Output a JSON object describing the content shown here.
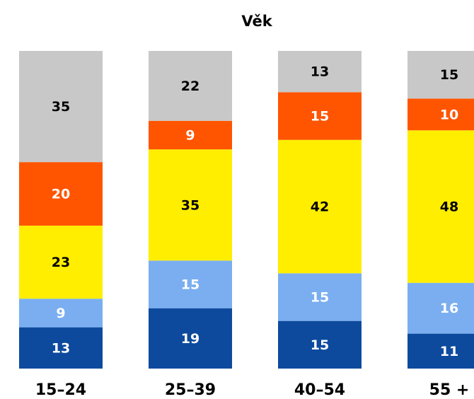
{
  "chart_data": {
    "type": "stacked_bar",
    "title": "Věk",
    "categories": [
      "15–24",
      "25–39",
      "40–54",
      "55 +"
    ],
    "series": [
      {
        "color": "#0d4a9e",
        "label_color": "#ffffff",
        "values": [
          13,
          19,
          15,
          11
        ]
      },
      {
        "color": "#7aaef0",
        "label_color": "#ffffff",
        "values": [
          9,
          15,
          15,
          16
        ]
      },
      {
        "color": "#ffee00",
        "label_color": "#000000",
        "values": [
          23,
          35,
          42,
          48
        ]
      },
      {
        "color": "#ff5500",
        "label_color": "#ffffff",
        "values": [
          20,
          9,
          15,
          10
        ]
      },
      {
        "color": "#c8c8c8",
        "label_color": "#000000",
        "values": [
          35,
          22,
          13,
          15
        ]
      }
    ],
    "ylim": [
      0,
      100
    ]
  }
}
